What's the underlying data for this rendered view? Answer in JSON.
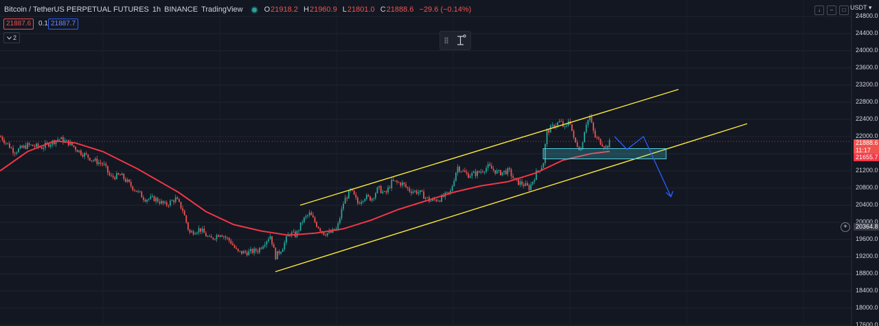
{
  "legend": {
    "symbol": "Bitcoin / TetherUS PERPETUAL FUTURES",
    "interval": "1h",
    "exchange": "BINANCE",
    "source": "TradingView",
    "status_color": "#26a69a",
    "ohlc": {
      "o_key": "O",
      "o": "21918.2",
      "h_key": "H",
      "h": "21960.9",
      "l_key": "L",
      "l": "21801.0",
      "c_key": "C",
      "c": "21888.6",
      "change": "−29.6 (−0.14%)"
    }
  },
  "quotes": {
    "bid": "21887.6",
    "spread": "0.1",
    "ask": "21887.7"
  },
  "indicators_toggle": {
    "icon": "chevron-down-icon",
    "count": "2"
  },
  "axis": {
    "currency": "USDT",
    "ticks": [
      "24800.0",
      "24400.0",
      "24000.0",
      "23600.0",
      "23200.0",
      "22800.0",
      "22400.0",
      "22000.0",
      "21600.0",
      "21200.0",
      "20800.0",
      "20400.0",
      "20000.0",
      "19600.0",
      "19200.0",
      "18800.0",
      "18400.0",
      "18000.0",
      "17600.0"
    ],
    "last_price_label": "21888.6",
    "countdown": "11:17",
    "ma_label": "21655.7",
    "crosshair_label": "20364.8"
  },
  "colors": {
    "bg": "#131722",
    "up": "#26a69a",
    "down": "#ef5350",
    "ma": "#f23645",
    "channel": "#ffeb3b",
    "projection": "#2962ff",
    "zone": "#4dd0e1"
  },
  "chart_data": {
    "type": "candlestick",
    "title": "Bitcoin / TetherUS PERPETUAL FUTURES",
    "yunit": "USDT",
    "ylim": [
      17600,
      24800
    ],
    "grid": true,
    "price_anchors": [
      [
        0,
        22000
      ],
      [
        20,
        21650
      ],
      [
        40,
        21800
      ],
      [
        60,
        21750
      ],
      [
        85,
        21950
      ],
      [
        100,
        21850
      ],
      [
        115,
        21650
      ],
      [
        135,
        21450
      ],
      [
        150,
        21350
      ],
      [
        160,
        21050
      ],
      [
        175,
        21100
      ],
      [
        190,
        20850
      ],
      [
        210,
        20550
      ],
      [
        225,
        20550
      ],
      [
        240,
        20400
      ],
      [
        255,
        20550
      ],
      [
        265,
        20300
      ],
      [
        275,
        19750
      ],
      [
        290,
        19850
      ],
      [
        305,
        19600
      ],
      [
        320,
        19750
      ],
      [
        335,
        19550
      ],
      [
        345,
        19300
      ],
      [
        360,
        19300
      ],
      [
        375,
        19350
      ],
      [
        385,
        19550
      ],
      [
        393,
        19700
      ],
      [
        400,
        19200
      ],
      [
        410,
        19400
      ],
      [
        420,
        19750
      ],
      [
        430,
        19700
      ],
      [
        440,
        20050
      ],
      [
        450,
        20200
      ],
      [
        460,
        19950
      ],
      [
        470,
        19750
      ],
      [
        480,
        19750
      ],
      [
        490,
        19850
      ],
      [
        500,
        20500
      ],
      [
        510,
        20750
      ],
      [
        520,
        20450
      ],
      [
        530,
        20600
      ],
      [
        540,
        20550
      ],
      [
        550,
        20800
      ],
      [
        560,
        20650
      ],
      [
        570,
        20950
      ],
      [
        585,
        20900
      ],
      [
        595,
        20750
      ],
      [
        610,
        20700
      ],
      [
        625,
        20500
      ],
      [
        640,
        20550
      ],
      [
        655,
        20700
      ],
      [
        665,
        21300
      ],
      [
        680,
        21100
      ],
      [
        695,
        21150
      ],
      [
        710,
        21300
      ],
      [
        725,
        21150
      ],
      [
        740,
        21200
      ],
      [
        750,
        20950
      ],
      [
        760,
        20900
      ],
      [
        770,
        20800
      ],
      [
        780,
        21150
      ],
      [
        790,
        21350
      ],
      [
        795,
        22100
      ],
      [
        805,
        22250
      ],
      [
        815,
        22350
      ],
      [
        823,
        22150
      ],
      [
        828,
        22450
      ],
      [
        835,
        21900
      ],
      [
        845,
        21700
      ],
      [
        852,
        22300
      ],
      [
        858,
        22450
      ],
      [
        865,
        22000
      ],
      [
        875,
        21850
      ],
      [
        882,
        21750
      ],
      [
        888,
        21890
      ]
    ],
    "moving_average": [
      [
        0,
        21200
      ],
      [
        40,
        21650
      ],
      [
        80,
        21900
      ],
      [
        110,
        21850
      ],
      [
        150,
        21650
      ],
      [
        200,
        21250
      ],
      [
        260,
        20700
      ],
      [
        300,
        20250
      ],
      [
        340,
        19950
      ],
      [
        380,
        19800
      ],
      [
        420,
        19700
      ],
      [
        460,
        19750
      ],
      [
        500,
        19850
      ],
      [
        540,
        20050
      ],
      [
        580,
        20300
      ],
      [
        620,
        20500
      ],
      [
        660,
        20700
      ],
      [
        700,
        20850
      ],
      [
        740,
        20950
      ],
      [
        780,
        21150
      ],
      [
        820,
        21450
      ],
      [
        860,
        21600
      ],
      [
        888,
        21655.7
      ]
    ],
    "annotations": {
      "channel_upper": [
        [
          437,
          20400
        ],
        [
          988,
          23100
        ]
      ],
      "channel_lower": [
        [
          401,
          18850
        ],
        [
          1088,
          22300
        ]
      ],
      "support_zone": {
        "x": [
          791,
          970
        ],
        "y": [
          21480,
          21720
        ]
      },
      "projection": [
        [
          895,
          22000
        ],
        [
          913,
          21700
        ],
        [
          937,
          22000
        ],
        [
          977,
          20600
        ]
      ],
      "last_price_line": 21888.6
    }
  }
}
